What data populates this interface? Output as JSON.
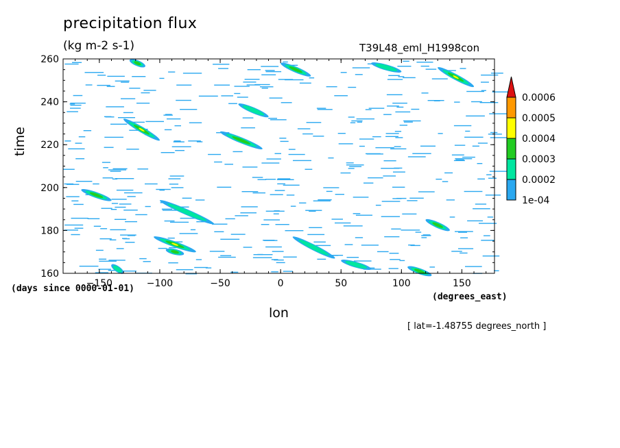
{
  "chart_data": {
    "type": "heatmap",
    "title": "precipitation flux",
    "units": "(kg m-2 s-1)",
    "subtitle": "T39L48_eml_H1998con",
    "xlabel": "lon",
    "ylabel": "time",
    "x_units": "(degrees_east)",
    "y_units": "(days since 0000-01-01)",
    "note": "[ lat=-1.48755 degrees_north ]",
    "xlim": [
      -180,
      177
    ],
    "ylim": [
      160,
      260
    ],
    "x_ticks": [
      -150,
      -100,
      -50,
      0,
      50,
      100,
      150
    ],
    "y_ticks": [
      160,
      180,
      200,
      220,
      240,
      260
    ],
    "levels": [
      0.0001,
      0.0002,
      0.0003,
      0.0004,
      0.0005,
      0.0006
    ],
    "level_labels": [
      "1e-04",
      "0.0002",
      "0.0003",
      "0.0004",
      "0.0005",
      "0.0006"
    ],
    "colors": [
      "#2aa8f0",
      "#00e6a0",
      "#22cc22",
      "#ffff00",
      "#ff9900",
      "#dd1111"
    ],
    "features": [
      {
        "lon": [
          -125,
          -112
        ],
        "time": [
          259.5,
          256.5
        ],
        "peak": 0.0003
      },
      {
        "lon": [
          0,
          25
        ],
        "time": [
          258,
          252
        ],
        "peak": 0.0003
      },
      {
        "lon": [
          130,
          160
        ],
        "time": [
          256,
          247
        ],
        "peak": 0.0004
      },
      {
        "lon": [
          -35,
          -10
        ],
        "time": [
          239,
          233
        ],
        "peak": 0.0002
      },
      {
        "lon": [
          -130,
          -100
        ],
        "time": [
          232,
          222
        ],
        "peak": 0.0004
      },
      {
        "lon": [
          -50,
          -15
        ],
        "time": [
          226,
          218
        ],
        "peak": 0.0003
      },
      {
        "lon": [
          -165,
          -140
        ],
        "time": [
          199,
          194
        ],
        "peak": 0.0003
      },
      {
        "lon": [
          -100,
          -55
        ],
        "time": [
          194,
          183
        ],
        "peak": 0.0002
      },
      {
        "lon": [
          -105,
          -70
        ],
        "time": [
          177,
          170
        ],
        "peak": 0.0004
      },
      {
        "lon": [
          -95,
          -80
        ],
        "time": [
          171,
          169
        ],
        "peak": 0.0003
      },
      {
        "lon": [
          120,
          140
        ],
        "time": [
          185,
          180
        ],
        "peak": 0.0003
      },
      {
        "lon": [
          10,
          45
        ],
        "time": [
          177,
          167
        ],
        "peak": 0.0002
      },
      {
        "lon": [
          50,
          75
        ],
        "time": [
          166,
          162
        ],
        "peak": 0.0002
      },
      {
        "lon": [
          105,
          125
        ],
        "time": [
          163,
          159
        ],
        "peak": 0.0003
      },
      {
        "lon": [
          -140,
          -130
        ],
        "time": [
          164,
          160
        ],
        "peak": 0.0002
      },
      {
        "lon": [
          75,
          100
        ],
        "time": [
          258,
          254
        ],
        "peak": 0.0002
      }
    ]
  }
}
